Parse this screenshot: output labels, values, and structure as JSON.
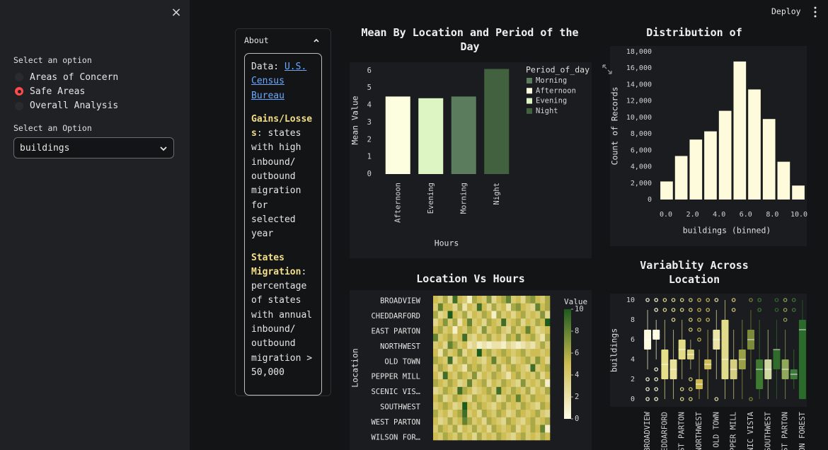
{
  "sidebar": {
    "radio_label": "Select an option",
    "radio_options": [
      "Areas of Concern",
      "Safe Areas",
      "Overall Analysis"
    ],
    "selected": 1,
    "select_label": "Select an Option",
    "select_value": "buildings"
  },
  "toolbar": {
    "deploy": "Deploy"
  },
  "about": {
    "title": "About",
    "paragraphs": [
      [
        {
          "text": "Data: "
        },
        {
          "text": "U.S. Census Bureau",
          "link": true
        }
      ],
      [
        {
          "text": "Gains/Losses",
          "bold": true
        },
        {
          "text": ": states with high inbound/ outbound migration for selected year"
        }
      ],
      [
        {
          "text": "States Migration",
          "bold": true
        },
        {
          "text": ": percentage of states with annual inbound/ outbound migration > 50,000"
        }
      ]
    ]
  },
  "chart_data": [
    {
      "type": "bar",
      "title": "Mean By Location and Period of the Day",
      "x_label": "Hours",
      "y_label": "Mean Value",
      "categories": [
        "Afternoon",
        "Evening",
        "Morning",
        "Night"
      ],
      "values": [
        4.5,
        4.4,
        4.5,
        6.1
      ],
      "colors": [
        "#fdfde0",
        "#ddf5c2",
        "#5b7d5e",
        "#41613f"
      ],
      "ylim": [
        0,
        6.2
      ],
      "yticks": [
        0,
        1,
        2,
        3,
        4,
        5,
        6
      ],
      "legend": {
        "title": "Period_of_day",
        "items": [
          "Morning",
          "Afternoon",
          "Evening",
          "Night"
        ],
        "colors": [
          "#5b7d5e",
          "#fdfde0",
          "#ddf5c2",
          "#41613f"
        ]
      }
    },
    {
      "type": "histogram",
      "title": "Distribution of",
      "x_label": "buildings (binned)",
      "y_label": "Count of Records",
      "bins": [
        -0.5,
        0.6,
        1.7,
        2.8,
        3.9,
        5,
        6.1,
        7.2,
        8.3,
        9.4,
        10.5
      ],
      "counts": [
        2200,
        5300,
        7300,
        8300,
        10800,
        16800,
        13400,
        9800,
        4600,
        1700
      ],
      "color": "#fdfbdc",
      "xlim": [
        -0.5,
        10.5
      ],
      "xticks": [
        {
          "value": 0,
          "label": "0.0"
        },
        {
          "value": 2,
          "label": "2.0"
        },
        {
          "value": 4,
          "label": "4.0"
        },
        {
          "value": 6,
          "label": "6.0"
        },
        {
          "value": 8,
          "label": "8.0"
        },
        {
          "value": 10,
          "label": "10.0"
        }
      ],
      "ylim": [
        0,
        18000
      ],
      "yticks": [
        0,
        {
          "value": 2000,
          "label": "2,000"
        },
        {
          "value": 4000,
          "label": "4,000"
        },
        {
          "value": 6000,
          "label": "6,000"
        },
        {
          "value": 8000,
          "label": "8,000"
        },
        {
          "value": 10000,
          "label": "10,000"
        },
        {
          "value": 12000,
          "label": "12,000"
        },
        {
          "value": 14000,
          "label": "14,000"
        },
        {
          "value": 16000,
          "label": "16,000"
        },
        {
          "value": 18000,
          "label": "18,000"
        }
      ]
    },
    {
      "type": "heatmap",
      "title": "Location Vs Hours",
      "y_label": "Location",
      "rows": [
        "BROADVIEW",
        null,
        "CHEDDARFORD",
        null,
        "EAST PARTON",
        null,
        "NORTHWEST",
        null,
        "OLD TOWN",
        null,
        "PEPPER MILL",
        null,
        "SCENIC VIS…",
        null,
        "SOUTHWEST",
        null,
        "WEST PARTON",
        null,
        "WILSON FOR…"
      ],
      "values": [
        [
          5,
          4,
          6,
          3,
          9,
          5,
          4,
          1,
          6,
          5,
          4,
          7,
          3,
          5,
          6,
          8,
          4,
          5,
          3,
          6,
          7,
          5,
          4,
          6
        ],
        [
          4,
          8,
          5,
          5,
          3,
          6,
          2,
          5,
          4,
          9,
          5,
          3,
          6,
          4,
          5,
          2,
          6,
          7,
          5,
          4,
          3,
          8,
          5,
          6
        ],
        [
          6,
          3,
          4,
          10,
          5,
          4,
          6,
          3,
          5,
          4,
          6,
          5,
          1,
          6,
          4,
          5,
          3,
          5,
          6,
          4,
          5,
          4,
          7,
          3
        ],
        [
          3,
          5,
          7,
          4,
          6,
          2,
          5,
          8,
          4,
          5,
          3,
          6,
          5,
          4,
          9,
          4,
          5,
          6,
          3,
          5,
          4,
          6,
          5,
          10
        ],
        [
          5,
          6,
          4,
          5,
          1,
          5,
          4,
          6,
          5,
          3,
          7,
          4,
          5,
          6,
          4,
          3,
          6,
          4,
          5,
          8,
          5,
          3,
          4,
          5
        ],
        [
          8,
          4,
          5,
          6,
          4,
          5,
          9,
          4,
          3,
          5,
          4,
          6,
          4,
          5,
          3,
          6,
          5,
          7,
          4,
          5,
          6,
          4,
          2,
          6
        ],
        [
          4,
          5,
          3,
          8,
          6,
          4,
          5,
          2,
          3,
          1,
          2,
          1,
          2,
          2,
          1,
          3,
          2,
          1,
          2,
          3,
          2,
          4,
          6,
          4
        ],
        [
          5,
          2,
          6,
          4,
          5,
          7,
          3,
          5,
          4,
          10,
          5,
          6,
          4,
          5,
          6,
          5,
          4,
          5,
          6,
          4,
          5,
          5,
          4,
          5
        ],
        [
          6,
          5,
          4,
          9,
          3,
          5,
          6,
          4,
          5,
          4,
          3,
          5,
          8,
          4,
          5,
          6,
          3,
          4,
          5,
          6,
          4,
          7,
          5,
          3
        ],
        [
          4,
          6,
          5,
          3,
          5,
          4,
          2,
          6,
          5,
          6,
          4,
          5,
          4,
          6,
          3,
          5,
          6,
          5,
          4,
          3,
          9,
          4,
          5,
          6
        ],
        [
          5,
          3,
          9,
          5,
          4,
          6,
          5,
          4,
          7,
          3,
          5,
          4,
          6,
          5,
          4,
          2,
          5,
          6,
          4,
          5,
          4,
          6,
          3,
          5
        ],
        [
          6,
          5,
          4,
          6,
          5,
          3,
          4,
          8,
          4,
          5,
          6,
          3,
          5,
          4,
          6,
          5,
          4,
          3,
          7,
          4,
          5,
          4,
          6,
          1
        ],
        [
          3,
          4,
          6,
          5,
          4,
          9,
          6,
          5,
          3,
          4,
          5,
          6,
          4,
          9,
          5,
          4,
          6,
          5,
          4,
          6,
          3,
          5,
          4,
          6
        ],
        [
          5,
          6,
          3,
          4,
          6,
          5,
          4,
          3,
          6,
          5,
          4,
          5,
          6,
          3,
          4,
          6,
          5,
          8,
          5,
          4,
          6,
          5,
          5,
          4
        ],
        [
          4,
          5,
          6,
          5,
          3,
          4,
          10,
          5,
          4,
          6,
          5,
          4,
          3,
          5,
          6,
          4,
          5,
          4,
          6,
          5,
          4,
          3,
          6,
          5
        ],
        [
          6,
          4,
          5,
          3,
          5,
          6,
          9,
          4,
          5,
          3,
          6,
          5,
          4,
          6,
          5,
          3,
          4,
          6,
          5,
          4,
          5,
          6,
          4,
          3
        ],
        [
          5,
          3,
          4,
          6,
          4,
          5,
          8,
          6,
          4,
          5,
          3,
          6,
          5,
          4,
          3,
          6,
          5,
          4,
          3,
          5,
          6,
          4,
          5,
          6
        ],
        [
          4,
          6,
          5,
          4,
          6,
          3,
          5,
          4,
          6,
          4,
          5,
          3,
          6,
          5,
          4,
          5,
          6,
          3,
          5,
          4,
          6,
          5,
          8,
          1
        ],
        [
          5,
          4,
          6,
          5,
          4,
          6,
          4,
          5,
          3,
          6,
          4,
          5,
          4,
          6,
          5,
          4,
          3,
          5,
          6,
          4,
          5,
          4,
          6,
          5
        ]
      ],
      "colorbar": {
        "title": "Value",
        "lim": [
          0,
          10
        ],
        "ticks": [
          0,
          2,
          4,
          6,
          8,
          10
        ],
        "colors": [
          "#fffce6",
          "#cdbd52",
          "#1d5a1d"
        ]
      }
    },
    {
      "type": "box",
      "title": "Variablity Across Location",
      "y_label": "buildings",
      "categories": [
        "BROADVIEW",
        null,
        "EDDARFORD",
        null,
        "ST PARTON",
        null,
        "NORTHWEST",
        null,
        "OLD TOWN",
        null,
        "PPER MILL",
        null,
        "NIC VISTA",
        null,
        "SOUTHWEST",
        null,
        "ST PARTON",
        null,
        "ON FOREST"
      ],
      "boxes": [
        {
          "min": 3,
          "q1": 5,
          "median": 6,
          "q3": 7,
          "max": 9,
          "outliers": [
            0,
            1,
            2,
            10
          ]
        },
        {
          "min": 4,
          "q1": 6,
          "median": 6.5,
          "q3": 7,
          "max": 8,
          "outliers": [
            0,
            1,
            2,
            3,
            9,
            10
          ]
        },
        {
          "min": 0,
          "q1": 2,
          "median": 3.5,
          "q3": 5,
          "max": 8,
          "outliers": [
            9,
            10
          ]
        },
        {
          "min": 0,
          "q1": 2,
          "median": 3,
          "q3": 4,
          "max": 7,
          "outliers": [
            8,
            9,
            10
          ]
        },
        {
          "min": 2,
          "q1": 4,
          "median": 5,
          "q3": 6,
          "max": 8,
          "outliers": [
            0,
            1,
            9,
            10
          ]
        },
        {
          "min": 3,
          "q1": 4,
          "median": 4.5,
          "q3": 5,
          "max": 6,
          "outliers": [
            0,
            1,
            2,
            7,
            8,
            9,
            10
          ]
        },
        {
          "min": 0,
          "q1": 1,
          "median": 1.5,
          "q3": 2,
          "max": 5,
          "outliers": [
            6,
            7,
            8,
            9,
            10
          ]
        },
        {
          "min": 0,
          "q1": 3,
          "median": 3.5,
          "q3": 4,
          "max": 7,
          "outliers": [
            8,
            9,
            10
          ]
        },
        {
          "min": 2,
          "q1": 5,
          "median": 6,
          "q3": 7,
          "max": 9,
          "outliers": [
            0,
            10
          ]
        },
        {
          "min": 0,
          "q1": 2,
          "median": 4,
          "q3": 8,
          "max": 10,
          "outliers": []
        },
        {
          "min": 0,
          "q1": 2,
          "median": 3,
          "q3": 4,
          "max": 7,
          "outliers": [
            9,
            10
          ]
        },
        {
          "min": 0,
          "q1": 3,
          "median": 4,
          "q3": 5,
          "max": 8,
          "outliers": []
        },
        {
          "min": 2,
          "q1": 5,
          "median": 6,
          "q3": 7,
          "max": 9,
          "outliers": [
            0,
            10
          ]
        },
        {
          "min": 0,
          "q1": 1,
          "median": 3,
          "q3": 4,
          "max": 8,
          "outliers": [
            9,
            10
          ]
        },
        {
          "min": 0,
          "q1": 2,
          "median": 3,
          "q3": 4,
          "max": 7,
          "outliers": []
        },
        {
          "min": 0,
          "q1": 3,
          "median": 5,
          "q3": 5,
          "max": 8,
          "outliers": [
            9,
            10
          ]
        },
        {
          "min": 0,
          "q1": 2,
          "median": 3,
          "q3": 4,
          "max": 7,
          "outliers": [
            8,
            9,
            10
          ]
        },
        {
          "min": 1,
          "q1": 2,
          "median": 2.5,
          "q3": 3,
          "max": 5,
          "outliers": [
            9,
            10
          ]
        },
        {
          "min": 0,
          "q1": 0,
          "median": 7,
          "q3": 8,
          "max": 10,
          "outliers": []
        }
      ],
      "colors": [
        "#fdfbe0",
        "#fdfbe0",
        "#e6e08a",
        "#e8e29a",
        "#e3dc86",
        "#d9d27a",
        "#c9b94f",
        "#cbbd5a",
        "#eae6a8",
        "#e1dc8c",
        "#d6cf82",
        "#9aa048",
        "#7d8a3c",
        "#3f7a32",
        "#cfd7a0",
        "#2f6b2a",
        "#8fa85a",
        "#3d7a3a",
        "#2a6a2a"
      ],
      "ylim": [
        -0.5,
        10.5
      ],
      "yticks": [
        0,
        2,
        4,
        6,
        8,
        10
      ]
    }
  ]
}
